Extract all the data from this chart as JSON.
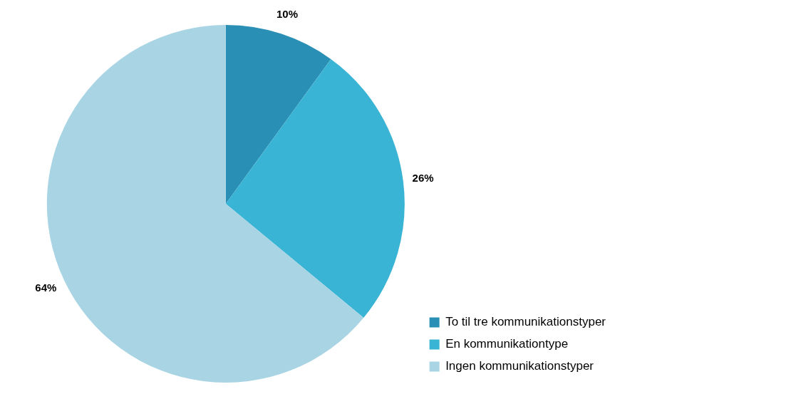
{
  "chart_data": {
    "type": "pie",
    "categories": [
      "To til tre kommunikationstyper",
      "En kommunikationtype",
      "Ingen kommunikationstyper"
    ],
    "values": [
      10,
      26,
      64
    ],
    "colors": [
      "#2a8fb5",
      "#3ab4d4",
      "#a8d4e4"
    ],
    "value_labels": [
      "10%",
      "26%",
      "64%"
    ],
    "legend": "bottom right"
  }
}
